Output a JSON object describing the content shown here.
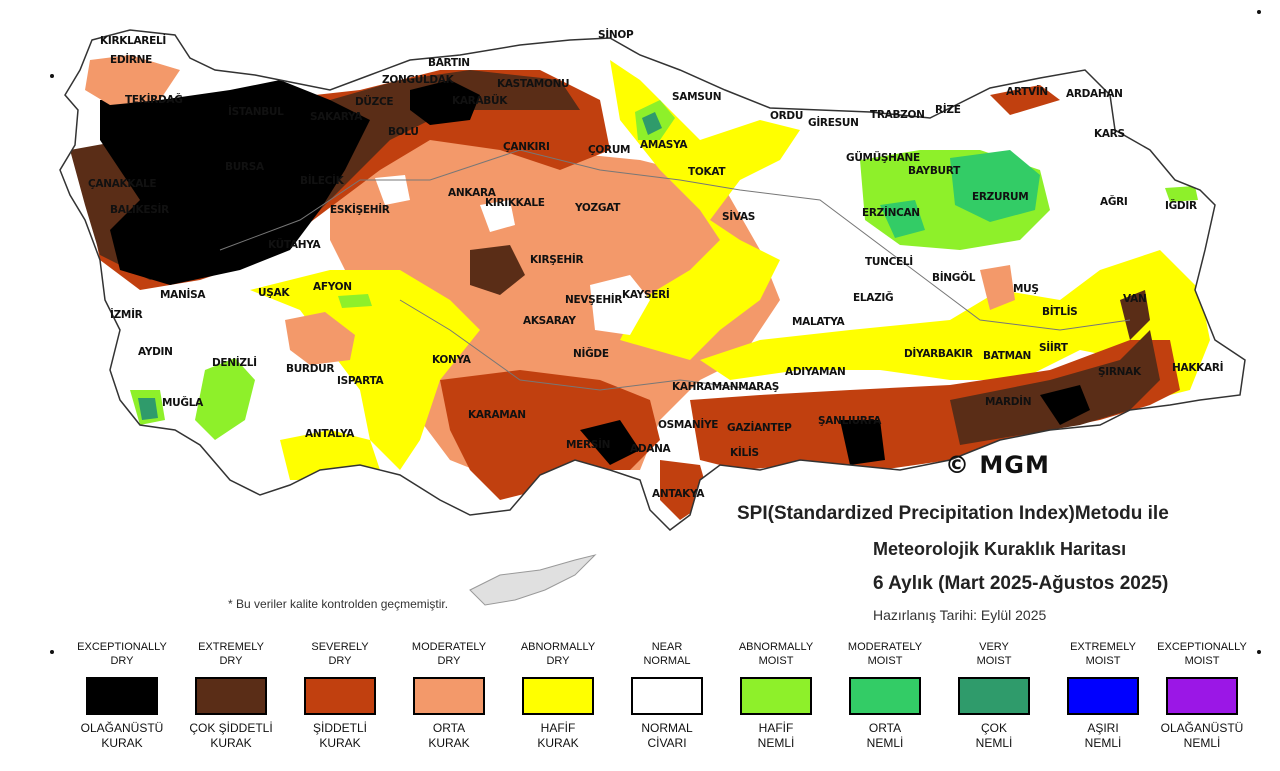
{
  "title": {
    "line1": "SPI(Standardized Precipitation Index)Metodu ile",
    "line2": "Meteorolojik Kuraklık Haritası",
    "line3": "6 Aylık (Mart 2025-Ağustos 2025)",
    "prepared": "Hazırlanış Tarihi: Eylül 2025"
  },
  "note": "* Bu veriler kalite kontrolden geçmemiştir.",
  "copyright": "© MGM",
  "colors": {
    "exceptionally_dry": "#000000",
    "extremely_dry": "#5a2d17",
    "severely_dry": "#c1400f",
    "moderately_dry": "#f3996a",
    "abnormally_dry": "#ffff00",
    "near_normal": "#ffffff",
    "abnormally_moist": "#8ef02a",
    "moderately_moist": "#33cc66",
    "very_moist": "#2f9b6b",
    "extremely_moist": "#0000ff",
    "exceptionally_moist": "#9b17e6"
  },
  "legend": [
    {
      "en": "EXCEPTIONALLY\nDRY",
      "tr": "OLAĞANÜSTÜ\nKURAK",
      "color": "#000000"
    },
    {
      "en": "EXTREMELY\nDRY",
      "tr": "ÇOK ŞİDDETLİ\nKURAK",
      "color": "#5a2d17"
    },
    {
      "en": "SEVERELY\nDRY",
      "tr": "ŞİDDETLİ\nKURAK",
      "color": "#c1400f"
    },
    {
      "en": "MODERATELY\nDRY",
      "tr": "ORTA\nKURAK",
      "color": "#f3996a"
    },
    {
      "en": "ABNORMALLY\nDRY",
      "tr": "HAFİF\nKURAK",
      "color": "#ffff00"
    },
    {
      "en": "NEAR\nNORMAL",
      "tr": "NORMAL\nCİVARI",
      "color": "#ffffff"
    },
    {
      "en": "ABNORMALLY\nMOIST",
      "tr": "HAFİF\nNEMLİ",
      "color": "#8ef02a"
    },
    {
      "en": "MODERATELY\nMOIST",
      "tr": "ORTA\nNEMLİ",
      "color": "#33cc66"
    },
    {
      "en": "VERY\nMOIST",
      "tr": "ÇOK\nNEMLİ",
      "color": "#2f9b6b"
    },
    {
      "en": "EXTREMELY\nMOIST",
      "tr": "AŞIRI\nNEMLİ",
      "color": "#0000ff"
    },
    {
      "en": "EXCEPTIONALLY\nMOIST",
      "tr": "OLAĞANÜSTÜ\nNEMLİ",
      "color": "#9b17e6"
    }
  ],
  "cities": [
    "KIRKLARELİ",
    "EDİRNE",
    "TEKİRDAĞ",
    "ÇANAKKALE",
    "BALIKESİR",
    "BARTIN",
    "ZONGULDAK",
    "KASTAMONU",
    "SİNOP",
    "SAMSUN",
    "AMASYA",
    "ÇORUM",
    "ÇANKIRI",
    "BOLU",
    "ANKARA",
    "KIRIKKALE",
    "YOZGAT",
    "TOKAT",
    "ORDU",
    "GİRESUN",
    "TRABZON",
    "RİZE",
    "ARTVİN",
    "ARDAHAN",
    "KARS",
    "IĞDIR",
    "AĞRI",
    "GÜMÜŞHANE",
    "BAYBURT",
    "ERZURUM",
    "ERZİNCAN",
    "SİVAS",
    "TUNCELİ",
    "BİNGÖL",
    "MUŞ",
    "BİTLİS",
    "VAN",
    "HAKKARİ",
    "ŞIRNAK",
    "SİİRT",
    "BATMAN",
    "DİYARBAKIR",
    "MARDİN",
    "ELAZIĞ",
    "MALATYA",
    "ADIYAMAN",
    "ŞANLIURFA",
    "KAHRAMANMARAŞ",
    "GAZİANTEP",
    "OSMANİYE",
    "KİLİS",
    "ANTAKYA",
    "KARAMAN",
    "MERSİN",
    "ADANA",
    "NİĞDE",
    "AKSARAY",
    "NEVŞEHİR",
    "KAYSERİ",
    "KIRŞEHİR",
    "KONYA",
    "AFYON",
    "UŞAK",
    "MANİSA",
    "İZMİR",
    "AYDIN",
    "DENİZLİ",
    "MUĞLA",
    "BURDUR",
    "ISPARTA",
    "ANTALYA",
    "ESKİŞEHİR",
    "KÜTAHYA",
    "BİLECİK",
    "BURSA",
    "İSTANBUL",
    "SAKARYA",
    "DÜZCE",
    "KARABÜK"
  ]
}
